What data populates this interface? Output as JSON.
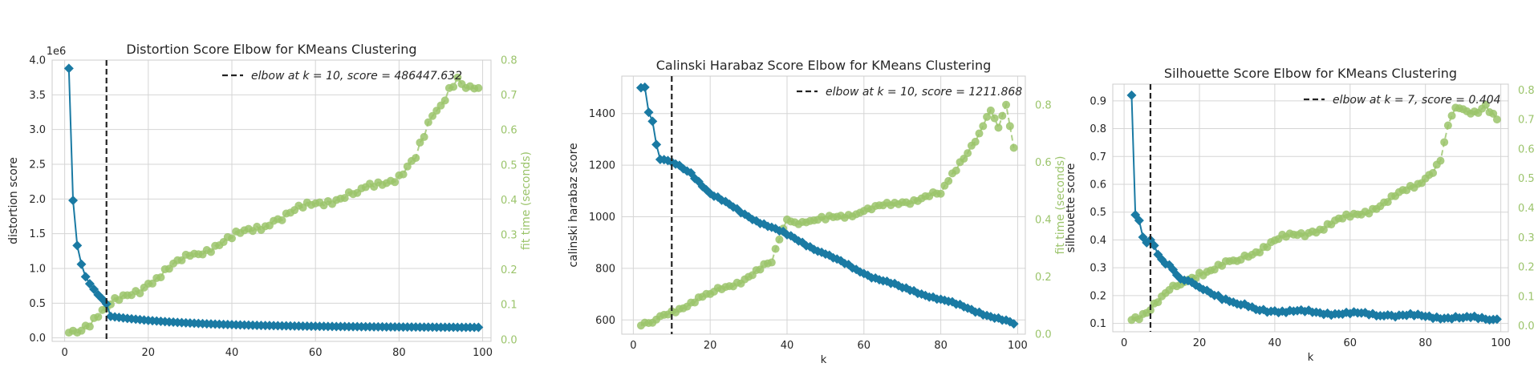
{
  "colors": {
    "score": "#1a7aa3",
    "time": "#9bc46b",
    "elbow": "#222222",
    "grid": "#d5d5d5"
  },
  "chart_data": [
    {
      "type": "line",
      "title": "Distortion Score Elbow for KMeans Clustering",
      "xlabel": "",
      "ylabel": "distortion score",
      "y2label": "fit time (seconds)",
      "offset_label": "1e6",
      "xlim": [
        -3,
        102
      ],
      "ylim": [
        -0.05,
        4.0
      ],
      "y2lim": [
        -0.005,
        0.8
      ],
      "xticks": [
        "0",
        "20",
        "40",
        "60",
        "80",
        "100"
      ],
      "yticks": [
        "0.0",
        "0.5",
        "1.0",
        "1.5",
        "2.0",
        "2.5",
        "3.0",
        "3.5",
        "4.0"
      ],
      "y2ticks": [
        "0.0",
        "0.1",
        "0.2",
        "0.3",
        "0.4",
        "0.5",
        "0.6",
        "0.7",
        "0.8"
      ],
      "elbow_k": 10,
      "legend": "elbow at k = 10, score = 486447.632",
      "score_model": {
        "type": "decay",
        "anchors": [
          [
            1,
            3.88
          ],
          [
            2,
            1.98
          ],
          [
            3,
            1.33
          ],
          [
            4,
            1.06
          ],
          [
            5,
            0.88
          ],
          [
            6,
            0.78
          ],
          [
            7,
            0.7
          ],
          [
            8,
            0.62
          ],
          [
            9,
            0.56
          ],
          [
            10,
            0.49
          ]
        ],
        "a": 0.15,
        "b": 0.15,
        "c": 0.45,
        "d": 0.045
      },
      "time_model": {
        "type": "curve",
        "k_range": [
          1,
          99
        ],
        "pts": [
          [
            1,
            0.02
          ],
          [
            5,
            0.04
          ],
          [
            10,
            0.09
          ],
          [
            20,
            0.16
          ],
          [
            30,
            0.24
          ],
          [
            40,
            0.29
          ],
          [
            50,
            0.34
          ],
          [
            60,
            0.39
          ],
          [
            70,
            0.42
          ],
          [
            80,
            0.47
          ],
          [
            84,
            0.52
          ],
          [
            86,
            0.58
          ],
          [
            88,
            0.64
          ],
          [
            90,
            0.67
          ],
          [
            92,
            0.72
          ],
          [
            94,
            0.75
          ],
          [
            96,
            0.72
          ],
          [
            99,
            0.72
          ]
        ],
        "jitter": 0.015
      }
    },
    {
      "type": "line",
      "title": "Calinski Harabaz Score Elbow for KMeans Clustering",
      "xlabel": "k",
      "ylabel": "calinski harabaz score",
      "y2label": "fit time (seconds)",
      "offset_label": "",
      "xlim": [
        -3,
        102
      ],
      "ylim": [
        545,
        1545
      ],
      "y2lim": [
        0.0,
        0.9
      ],
      "xticks": [
        "0",
        "20",
        "40",
        "60",
        "80",
        "100"
      ],
      "yticks": [
        "600",
        "800",
        "1000",
        "1200",
        "1400"
      ],
      "y2ticks": [
        "0.0",
        "0.2",
        "0.4",
        "0.6",
        "0.8"
      ],
      "elbow_k": 10,
      "legend": "elbow at k = 10, score = 1211.868",
      "score_model": {
        "type": "curve",
        "k_range": [
          2,
          99
        ],
        "pts": [
          [
            2,
            1500
          ],
          [
            3,
            1502
          ],
          [
            4,
            1405
          ],
          [
            5,
            1370
          ],
          [
            6,
            1280
          ],
          [
            7,
            1222
          ],
          [
            10,
            1212
          ],
          [
            15,
            1170
          ],
          [
            20,
            1090
          ],
          [
            30,
            1000
          ],
          [
            40,
            930
          ],
          [
            50,
            855
          ],
          [
            60,
            780
          ],
          [
            70,
            725
          ],
          [
            80,
            680
          ],
          [
            90,
            630
          ],
          [
            99,
            585
          ]
        ],
        "jitter": 6
      },
      "time_model": {
        "type": "curve",
        "k_range": [
          2,
          99
        ],
        "pts": [
          [
            2,
            0.03
          ],
          [
            5,
            0.04
          ],
          [
            10,
            0.08
          ],
          [
            20,
            0.14
          ],
          [
            30,
            0.2
          ],
          [
            36,
            0.25
          ],
          [
            38,
            0.33
          ],
          [
            40,
            0.4
          ],
          [
            45,
            0.39
          ],
          [
            50,
            0.4
          ],
          [
            60,
            0.43
          ],
          [
            70,
            0.46
          ],
          [
            80,
            0.49
          ],
          [
            85,
            0.6
          ],
          [
            90,
            0.7
          ],
          [
            93,
            0.78
          ],
          [
            95,
            0.72
          ],
          [
            97,
            0.8
          ],
          [
            99,
            0.65
          ]
        ],
        "jitter": 0.012
      }
    },
    {
      "type": "line",
      "title": "Silhouette Score Elbow for KMeans Clustering",
      "xlabel": "k",
      "ylabel": "silhouette score",
      "y2label": "fit time (seconds)",
      "offset_label": "",
      "xlim": [
        -3,
        102
      ],
      "ylim": [
        0.07,
        0.96
      ],
      "y2lim": [
        -0.02,
        0.82
      ],
      "xticks": [
        "0",
        "20",
        "40",
        "60",
        "80",
        "100"
      ],
      "yticks": [
        "0.1",
        "0.2",
        "0.3",
        "0.4",
        "0.5",
        "0.6",
        "0.7",
        "0.8",
        "0.9"
      ],
      "y2ticks": [
        "0.0",
        "0.1",
        "0.2",
        "0.3",
        "0.4",
        "0.5",
        "0.6",
        "0.7",
        "0.8"
      ],
      "elbow_k": 7,
      "legend": "elbow at k = 7, score = 0.404",
      "score_model": {
        "type": "curve",
        "k_range": [
          2,
          99
        ],
        "pts": [
          [
            2,
            0.92
          ],
          [
            3,
            0.49
          ],
          [
            4,
            0.47
          ],
          [
            5,
            0.41
          ],
          [
            6,
            0.39
          ],
          [
            7,
            0.4
          ],
          [
            8,
            0.38
          ],
          [
            10,
            0.33
          ],
          [
            12,
            0.31
          ],
          [
            15,
            0.26
          ],
          [
            20,
            0.23
          ],
          [
            25,
            0.2
          ],
          [
            30,
            0.17
          ],
          [
            35,
            0.15
          ],
          [
            40,
            0.145
          ],
          [
            50,
            0.14
          ],
          [
            60,
            0.135
          ],
          [
            70,
            0.13
          ],
          [
            80,
            0.125
          ],
          [
            90,
            0.12
          ],
          [
            99,
            0.115
          ]
        ],
        "jitter": 0.008
      },
      "time_model": {
        "type": "curve",
        "k_range": [
          2,
          99
        ],
        "pts": [
          [
            2,
            0.02
          ],
          [
            5,
            0.04
          ],
          [
            10,
            0.1
          ],
          [
            15,
            0.14
          ],
          [
            20,
            0.18
          ],
          [
            30,
            0.22
          ],
          [
            40,
            0.29
          ],
          [
            50,
            0.32
          ],
          [
            60,
            0.37
          ],
          [
            70,
            0.42
          ],
          [
            80,
            0.5
          ],
          [
            84,
            0.56
          ],
          [
            86,
            0.68
          ],
          [
            88,
            0.74
          ],
          [
            92,
            0.72
          ],
          [
            96,
            0.75
          ],
          [
            99,
            0.7
          ]
        ],
        "jitter": 0.014
      }
    }
  ]
}
